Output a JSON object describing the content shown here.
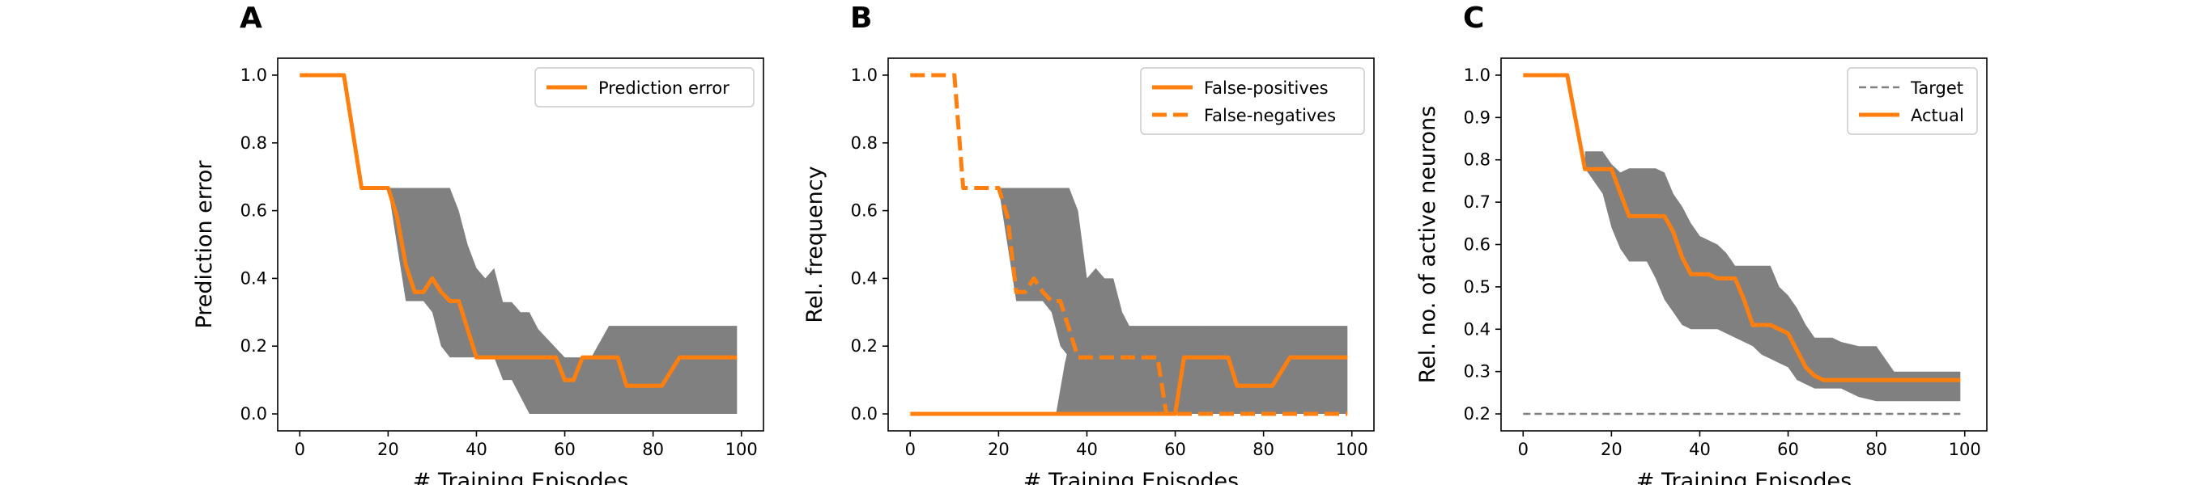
{
  "panel_letters": [
    "A",
    "B",
    "C"
  ],
  "colors": {
    "line": "#ff7f0e",
    "band": "#808080",
    "target": "#808080",
    "axis": "#000000"
  },
  "chart_data": [
    {
      "type": "line",
      "panel": "A",
      "xlabel": "# Training Episodes",
      "ylabel": "Prediction error",
      "xlim": [
        -5,
        105
      ],
      "ylim": [
        -0.05,
        1.05
      ],
      "xticks": [
        "0",
        "20",
        "40",
        "60",
        "80",
        "100"
      ],
      "xtick_values": [
        0,
        20,
        40,
        60,
        80,
        100
      ],
      "yticks": [
        "0.0",
        "0.2",
        "0.4",
        "0.6",
        "0.8",
        "1.0"
      ],
      "ytick_values": [
        0,
        0.2,
        0.4,
        0.6,
        0.8,
        1.0
      ],
      "legend_position": "top-right",
      "band": {
        "x": [
          20,
          22,
          24,
          28,
          30,
          32,
          34,
          36,
          38,
          40,
          42,
          44,
          46,
          48,
          50,
          52,
          54,
          60,
          66,
          70,
          99
        ],
        "lower": [
          0.667,
          0.5,
          0.333,
          0.333,
          0.3,
          0.2,
          0.167,
          0.167,
          0.167,
          0.167,
          0.167,
          0.167,
          0.1,
          0.1,
          0.05,
          0.0,
          0.0,
          0.0,
          0.0,
          0.0,
          0.0
        ],
        "upper": [
          0.667,
          0.667,
          0.667,
          0.667,
          0.667,
          0.667,
          0.667,
          0.6,
          0.5,
          0.43,
          0.4,
          0.43,
          0.33,
          0.33,
          0.3,
          0.3,
          0.25,
          0.167,
          0.167,
          0.26,
          0.26
        ]
      },
      "series": [
        {
          "name": "Prediction error",
          "style": "solid",
          "x": [
            0,
            10,
            14,
            20,
            22,
            24,
            26,
            28,
            30,
            32,
            34,
            36,
            38,
            40,
            42,
            58,
            60,
            62,
            64,
            72,
            74,
            82,
            86,
            99
          ],
          "y": [
            1.0,
            1.0,
            0.667,
            0.667,
            0.583,
            0.44,
            0.36,
            0.36,
            0.4,
            0.36,
            0.333,
            0.333,
            0.25,
            0.167,
            0.167,
            0.167,
            0.1,
            0.1,
            0.167,
            0.167,
            0.083,
            0.083,
            0.167,
            0.167
          ]
        }
      ]
    },
    {
      "type": "line",
      "panel": "B",
      "xlabel": "# Training Episodes",
      "ylabel": "Rel. frequency",
      "xlim": [
        -5,
        105
      ],
      "ylim": [
        -0.05,
        1.05
      ],
      "xticks": [
        "0",
        "20",
        "40",
        "60",
        "80",
        "100"
      ],
      "xtick_values": [
        0,
        20,
        40,
        60,
        80,
        100
      ],
      "yticks": [
        "0.0",
        "0.2",
        "0.4",
        "0.6",
        "0.8",
        "1.0"
      ],
      "ytick_values": [
        0,
        0.2,
        0.4,
        0.6,
        0.8,
        1.0
      ],
      "legend_position": "top-right",
      "band": {
        "x": [
          20,
          22,
          24,
          30,
          32,
          34,
          36,
          38,
          40,
          42,
          44,
          46,
          48,
          50,
          52,
          54,
          56,
          58,
          60,
          62,
          64,
          66,
          99
        ],
        "lower": [
          0.667,
          0.5,
          0.333,
          0.333,
          0.3,
          0.2,
          0.167,
          0.167,
          0.167,
          0.167,
          0.167,
          0.1,
          0.05,
          0.0,
          0.0,
          0.0,
          0.0,
          0.0,
          0.0,
          0.0,
          0.0,
          0.0,
          0.0
        ],
        "upper": [
          0.667,
          0.667,
          0.667,
          0.667,
          0.667,
          0.667,
          0.667,
          0.6,
          0.4,
          0.43,
          0.4,
          0.4,
          0.3,
          0.25,
          0.15,
          0.1,
          0.05,
          0.0,
          0.0,
          0.1,
          0.167,
          0.26,
          0.26
        ]
      },
      "band2": {
        "x": [
          33,
          35,
          37,
          60,
          66
        ],
        "lower": [
          0.0,
          0.0,
          0.0,
          0.0,
          0.0
        ],
        "upper": [
          0.0,
          0.15,
          0.26,
          0.26,
          0.26
        ]
      },
      "series": [
        {
          "name": "False-positives",
          "style": "solid",
          "x": [
            0,
            60,
            62,
            64,
            72,
            74,
            82,
            86,
            99
          ],
          "y": [
            0.0,
            0.0,
            0.167,
            0.167,
            0.167,
            0.083,
            0.083,
            0.167,
            0.167
          ]
        },
        {
          "name": "False-negatives",
          "style": "dashed",
          "x": [
            0,
            10,
            12,
            16,
            20,
            22,
            24,
            26,
            28,
            30,
            32,
            34,
            36,
            38,
            56,
            58,
            99
          ],
          "y": [
            1.0,
            1.0,
            0.667,
            0.667,
            0.667,
            0.583,
            0.36,
            0.36,
            0.4,
            0.36,
            0.333,
            0.333,
            0.25,
            0.167,
            0.167,
            0.0,
            0.0
          ]
        }
      ]
    },
    {
      "type": "line",
      "panel": "C",
      "xlabel": "# Training Episodes",
      "ylabel": "Rel. no. of active neurons",
      "xlim": [
        -5,
        105
      ],
      "ylim": [
        0.16,
        1.04
      ],
      "xticks": [
        "0",
        "20",
        "40",
        "60",
        "80",
        "100"
      ],
      "xtick_values": [
        0,
        20,
        40,
        60,
        80,
        100
      ],
      "yticks": [
        "0.2",
        "0.3",
        "0.4",
        "0.5",
        "0.6",
        "0.7",
        "0.8",
        "0.9",
        "1.0"
      ],
      "ytick_values": [
        0.2,
        0.3,
        0.4,
        0.5,
        0.6,
        0.7,
        0.8,
        0.9,
        1.0
      ],
      "legend_position": "top-right",
      "band": {
        "x": [
          14,
          18,
          20,
          22,
          24,
          28,
          30,
          32,
          34,
          36,
          38,
          40,
          44,
          46,
          48,
          50,
          52,
          54,
          56,
          58,
          60,
          62,
          64,
          66,
          70,
          72,
          76,
          80,
          84,
          88,
          99
        ],
        "lower": [
          0.78,
          0.72,
          0.64,
          0.59,
          0.56,
          0.56,
          0.52,
          0.47,
          0.44,
          0.41,
          0.4,
          0.4,
          0.4,
          0.39,
          0.38,
          0.37,
          0.36,
          0.34,
          0.33,
          0.32,
          0.31,
          0.28,
          0.27,
          0.26,
          0.26,
          0.26,
          0.24,
          0.23,
          0.23,
          0.23,
          0.23
        ],
        "upper": [
          0.82,
          0.82,
          0.79,
          0.77,
          0.78,
          0.78,
          0.78,
          0.77,
          0.72,
          0.69,
          0.65,
          0.62,
          0.6,
          0.58,
          0.55,
          0.55,
          0.55,
          0.55,
          0.55,
          0.5,
          0.48,
          0.45,
          0.41,
          0.38,
          0.38,
          0.37,
          0.36,
          0.36,
          0.3,
          0.3,
          0.3
        ]
      },
      "series": [
        {
          "name": "Target",
          "style": "dashed-thin",
          "x": [
            0,
            99
          ],
          "y": [
            0.2,
            0.2
          ]
        },
        {
          "name": "Actual",
          "style": "solid",
          "x": [
            0,
            10,
            14,
            20,
            22,
            24,
            30,
            32,
            34,
            36,
            38,
            42,
            44,
            48,
            50,
            52,
            56,
            58,
            60,
            62,
            64,
            66,
            68,
            99
          ],
          "y": [
            1.0,
            1.0,
            0.778,
            0.778,
            0.722,
            0.667,
            0.667,
            0.667,
            0.63,
            0.57,
            0.53,
            0.53,
            0.52,
            0.52,
            0.47,
            0.41,
            0.41,
            0.4,
            0.39,
            0.35,
            0.31,
            0.29,
            0.28,
            0.28
          ]
        }
      ]
    }
  ]
}
